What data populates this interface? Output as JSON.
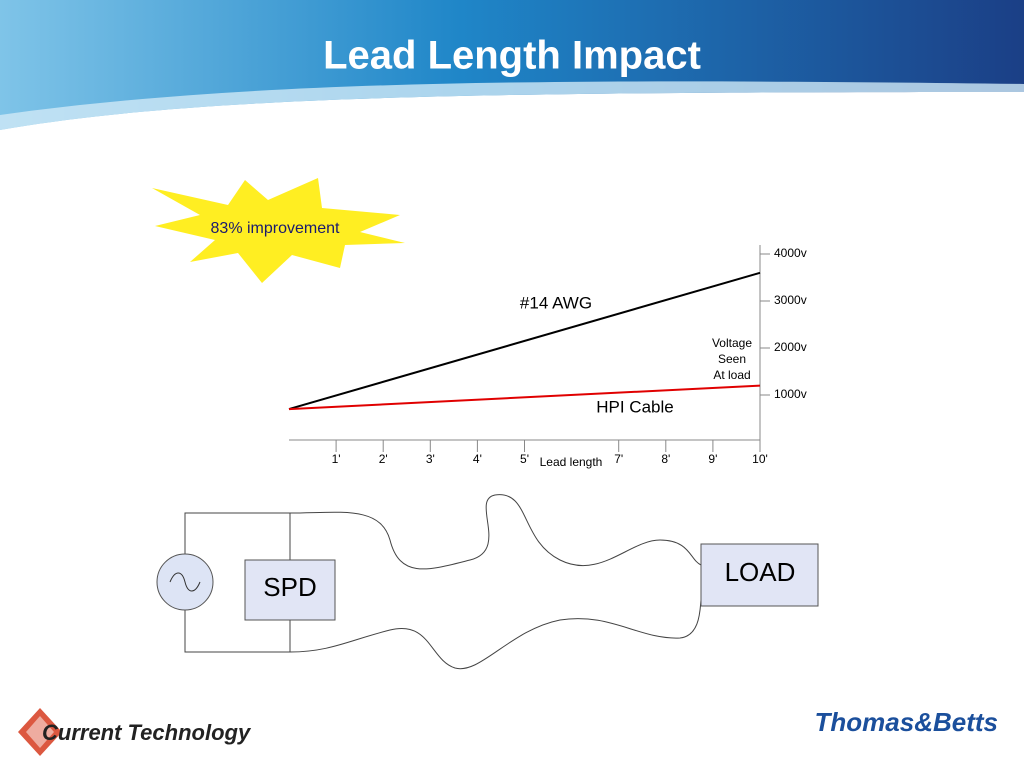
{
  "slide": {
    "title": "Lead Length Impact"
  },
  "chart_data": {
    "type": "line",
    "annotation": "83% improvement",
    "x_label": "Lead length",
    "y_label": [
      "Voltage",
      "Seen",
      "At load"
    ],
    "x": [
      0,
      10
    ],
    "series": [
      {
        "name": "#14 AWG",
        "color": "#000000",
        "values": [
          700,
          3600
        ]
      },
      {
        "name": "HPI Cable",
        "color": "#e00000",
        "values": [
          700,
          1200
        ]
      }
    ],
    "xlim": [
      0,
      10
    ],
    "xticks": [
      {
        "value": 1,
        "label": "1'"
      },
      {
        "value": 2,
        "label": "2'"
      },
      {
        "value": 3,
        "label": "3'"
      },
      {
        "value": 4,
        "label": "4'"
      },
      {
        "value": 5,
        "label": "5'"
      },
      {
        "value": 7,
        "label": "7'"
      },
      {
        "value": 8,
        "label": "8'"
      },
      {
        "value": 9,
        "label": "9'"
      },
      {
        "value": 10,
        "label": "10'"
      }
    ],
    "ylim": [
      0,
      4000
    ],
    "yticks": [
      {
        "value": 1000,
        "label": "1000v"
      },
      {
        "value": 2000,
        "label": "2000v"
      },
      {
        "value": 3000,
        "label": "3000v"
      },
      {
        "value": 4000,
        "label": "4000v"
      }
    ]
  },
  "diagram": {
    "spd": "SPD",
    "load": "LOAD"
  },
  "footer": {
    "left_logo": "Current Technology",
    "right_logo": "Thomas&Betts"
  }
}
